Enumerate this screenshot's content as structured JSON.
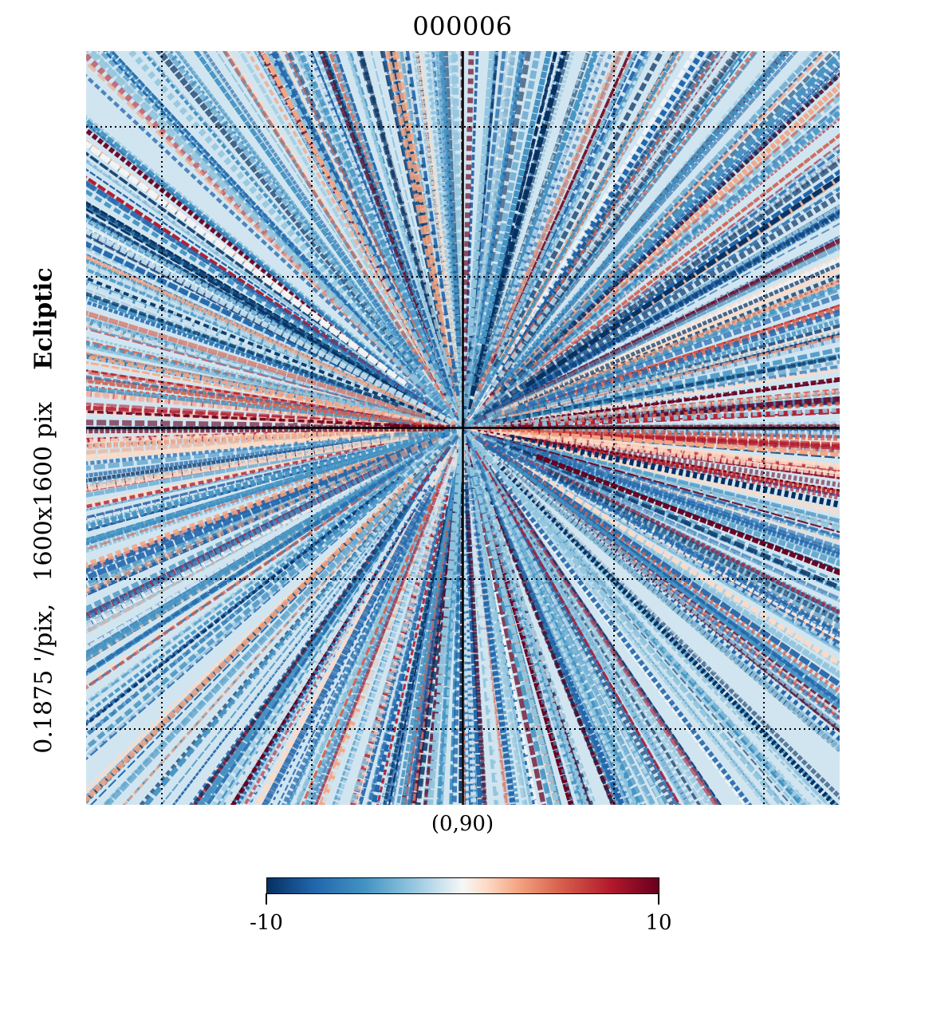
{
  "title": "000006",
  "coord_system": "Ecliptic",
  "resolution": "0.1875 '/pix,",
  "size": "1600x1600 pix",
  "center": "(0,90)",
  "colorbar": {
    "min_label": "-10",
    "max_label": "10",
    "min": -10,
    "max": 10,
    "colormap": "RdBu_r"
  }
}
